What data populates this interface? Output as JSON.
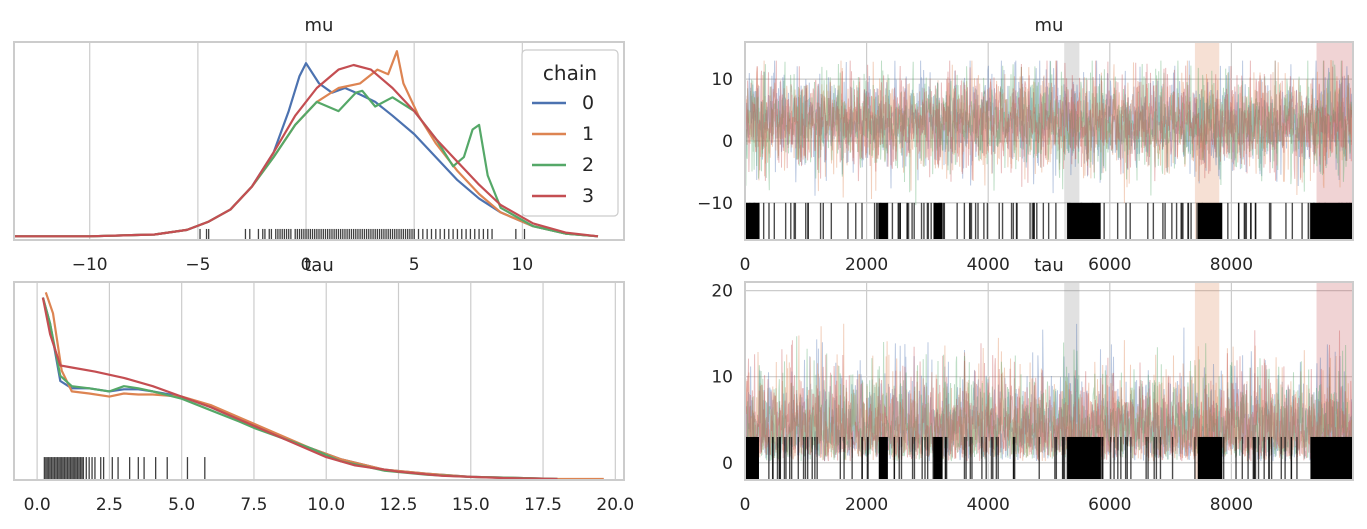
{
  "colors": {
    "chain_0": "#4c72b0",
    "chain_1": "#dd8452",
    "chain_2": "#55a868",
    "chain_3": "#c44e52",
    "rug": "#000000",
    "grid": "#cccccc",
    "frame": "#cccccc"
  },
  "chart_data": [
    {
      "id": "mu-density",
      "type": "line",
      "title": "mu",
      "grid": "vertical",
      "legend": {
        "title": "chain",
        "labels": [
          "0",
          "1",
          "2",
          "3"
        ],
        "placement": "top-right"
      },
      "xlim": [
        -13.5,
        14.7
      ],
      "xticks": [
        -10,
        -5,
        0,
        5,
        10
      ],
      "xtick_labels": [
        "−10",
        "−5",
        "0",
        "5",
        "10"
      ],
      "series": [
        {
          "name": "0",
          "x": [
            -13.5,
            -10,
            -7,
            -5.5,
            -4.5,
            -3.5,
            -2.5,
            -1.5,
            -0.8,
            -0.3,
            0,
            0.6,
            1.2,
            1.8,
            2.5,
            3.2,
            4,
            5,
            6,
            7,
            8,
            9,
            10.5,
            12,
            13.5
          ],
          "y": [
            0.004,
            0.004,
            0.006,
            0.011,
            0.02,
            0.033,
            0.058,
            0.095,
            0.14,
            0.178,
            0.192,
            0.17,
            0.16,
            0.165,
            0.158,
            0.15,
            0.135,
            0.115,
            0.09,
            0.065,
            0.045,
            0.03,
            0.015,
            0.007,
            0.004
          ]
        },
        {
          "name": "1",
          "x": [
            -13.5,
            -10,
            -7,
            -5.5,
            -4.5,
            -3.5,
            -2.5,
            -1.5,
            -0.5,
            0.5,
            1.5,
            2.5,
            3.3,
            3.8,
            4.2,
            4.5,
            5.2,
            6,
            7,
            8,
            9,
            10.5,
            12,
            13.5
          ],
          "y": [
            0.004,
            0.004,
            0.006,
            0.011,
            0.02,
            0.033,
            0.058,
            0.09,
            0.125,
            0.15,
            0.165,
            0.17,
            0.185,
            0.18,
            0.205,
            0.17,
            0.135,
            0.105,
            0.075,
            0.05,
            0.03,
            0.015,
            0.007,
            0.004
          ]
        },
        {
          "name": "2",
          "x": [
            -13.5,
            -10,
            -7,
            -5.5,
            -4.5,
            -3.5,
            -2.5,
            -1.5,
            -0.5,
            0.5,
            1.5,
            2.3,
            2.6,
            3.2,
            4,
            5,
            6,
            6.8,
            7.3,
            7.7,
            8,
            8.4,
            9,
            10.5,
            12,
            13.5
          ],
          "y": [
            0.004,
            0.004,
            0.006,
            0.011,
            0.02,
            0.033,
            0.058,
            0.09,
            0.125,
            0.15,
            0.14,
            0.16,
            0.162,
            0.145,
            0.155,
            0.14,
            0.11,
            0.08,
            0.09,
            0.12,
            0.125,
            0.07,
            0.035,
            0.015,
            0.007,
            0.004
          ]
        },
        {
          "name": "3",
          "x": [
            -13.5,
            -10,
            -7,
            -5.5,
            -4.5,
            -3.5,
            -2.5,
            -1.5,
            -0.5,
            0.5,
            1.5,
            2.2,
            3,
            4,
            5,
            6,
            7,
            8,
            9,
            10.5,
            12,
            13.5
          ],
          "y": [
            0.004,
            0.004,
            0.006,
            0.011,
            0.02,
            0.033,
            0.058,
            0.095,
            0.135,
            0.165,
            0.185,
            0.19,
            0.185,
            0.165,
            0.14,
            0.11,
            0.085,
            0.06,
            0.038,
            0.018,
            0.008,
            0.004
          ]
        }
      ],
      "rug": [
        -4.9,
        -4.6,
        -4.5,
        -2.8,
        -2.6,
        -2.2,
        -2.0,
        -1.9,
        -1.7,
        -1.6,
        -1.4,
        -1.3,
        -1.2,
        -1.1,
        -1.0,
        -0.9,
        -0.8,
        -0.7,
        -0.5,
        -0.4,
        -0.3,
        -0.2,
        -0.1,
        0.0,
        0.1,
        0.2,
        0.3,
        0.4,
        0.5,
        0.6,
        0.7,
        0.8,
        0.9,
        1.0,
        1.1,
        1.2,
        1.3,
        1.4,
        1.5,
        1.6,
        1.7,
        1.8,
        1.9,
        2.0,
        2.1,
        2.2,
        2.3,
        2.4,
        2.5,
        2.6,
        2.7,
        2.8,
        2.9,
        3.0,
        3.1,
        3.2,
        3.3,
        3.4,
        3.5,
        3.6,
        3.7,
        3.8,
        3.9,
        4.0,
        4.1,
        4.2,
        4.3,
        4.4,
        4.5,
        4.6,
        4.7,
        4.8,
        4.9,
        5.0,
        5.2,
        5.4,
        5.6,
        5.8,
        6.0,
        6.2,
        6.4,
        6.6,
        6.8,
        7.0,
        7.2,
        7.4,
        7.6,
        7.8,
        8.0,
        8.2,
        8.4,
        8.6,
        9.7,
        10.1
      ],
      "rug_height": 0.012,
      "ylim": [
        0,
        0.215
      ]
    },
    {
      "id": "mu-trace",
      "type": "line",
      "title": "mu",
      "grid": "both",
      "xlim": [
        0,
        10000
      ],
      "ylim": [
        -16,
        16
      ],
      "xticks": [
        0,
        2000,
        4000,
        6000,
        8000
      ],
      "xtick_labels": [
        "0",
        "2000",
        "4000",
        "6000",
        "8000"
      ],
      "yticks": [
        -10,
        0,
        10
      ],
      "ytick_labels": [
        "−10",
        "0",
        "10"
      ],
      "trace": {
        "mean": 3,
        "sd": 4,
        "clip": [
          -12,
          13
        ],
        "samples": 10000,
        "rug_y": [
          -16,
          -10
        ]
      },
      "divergence_blocks": [
        [
          0,
          230
        ],
        [
          2200,
          2350
        ],
        [
          3100,
          3250
        ],
        [
          5300,
          5850
        ],
        [
          7450,
          7850
        ],
        [
          9300,
          10000
        ]
      ],
      "shaded": [
        [
          5250,
          5500,
          "#888888"
        ],
        [
          7400,
          7800,
          "#dd8452"
        ],
        [
          9400,
          10000,
          "#c44e52"
        ]
      ]
    },
    {
      "id": "tau-density",
      "type": "line",
      "title": "tau",
      "grid": "vertical",
      "xlim": [
        -0.8,
        20.3
      ],
      "xticks": [
        0.0,
        2.5,
        5.0,
        7.5,
        10.0,
        12.5,
        15.0,
        17.5,
        20.0
      ],
      "xtick_labels": [
        "0.0",
        "2.5",
        "5.0",
        "7.5",
        "10.0",
        "12.5",
        "15.0",
        "17.5",
        "20.0"
      ],
      "ylim": [
        0,
        0.19
      ],
      "series": [
        {
          "name": "0",
          "x": [
            0.2,
            0.45,
            0.8,
            1.2,
            1.8,
            2.5,
            3.0,
            3.5,
            4.0,
            5.0,
            6.0,
            7.0,
            7.5,
            8.5,
            9.5,
            10.5,
            12,
            13.5,
            15,
            16.5,
            18
          ],
          "y": [
            0.175,
            0.15,
            0.095,
            0.088,
            0.088,
            0.085,
            0.087,
            0.087,
            0.085,
            0.08,
            0.07,
            0.058,
            0.052,
            0.04,
            0.03,
            0.02,
            0.01,
            0.006,
            0.003,
            0.002,
            0.001
          ]
        },
        {
          "name": "1",
          "x": [
            0.3,
            0.55,
            0.85,
            1.2,
            1.8,
            2.5,
            3.0,
            3.5,
            4.0,
            5.0,
            6.0,
            7.0,
            7.5,
            8.5,
            9.5,
            10.5,
            12,
            13.5,
            15,
            16.5,
            18,
            19.6
          ],
          "y": [
            0.18,
            0.16,
            0.105,
            0.085,
            0.083,
            0.08,
            0.083,
            0.082,
            0.082,
            0.08,
            0.072,
            0.06,
            0.054,
            0.042,
            0.03,
            0.02,
            0.01,
            0.006,
            0.003,
            0.002,
            0.001,
            0.001
          ]
        },
        {
          "name": "2",
          "x": [
            0.2,
            0.45,
            0.8,
            1.2,
            1.8,
            2.5,
            3.0,
            3.5,
            4.0,
            5.0,
            6.0,
            7.0,
            7.5,
            8.5,
            9.5,
            10.5,
            12,
            13.5,
            15,
            16.5,
            18
          ],
          "y": [
            0.175,
            0.15,
            0.1,
            0.09,
            0.088,
            0.085,
            0.09,
            0.088,
            0.085,
            0.078,
            0.067,
            0.056,
            0.05,
            0.04,
            0.03,
            0.018,
            0.009,
            0.005,
            0.003,
            0.002,
            0.001
          ]
        },
        {
          "name": "3",
          "x": [
            0.2,
            0.45,
            0.8,
            1.2,
            2.0,
            3.0,
            4.0,
            5.0,
            6.0,
            7.0,
            8.0,
            9.0,
            10.0,
            11.0,
            12.5,
            14,
            16,
            18
          ],
          "y": [
            0.175,
            0.14,
            0.11,
            0.108,
            0.104,
            0.098,
            0.09,
            0.08,
            0.07,
            0.058,
            0.046,
            0.034,
            0.022,
            0.014,
            0.008,
            0.004,
            0.002,
            0.001
          ]
        }
      ],
      "rug": [
        0.25,
        0.3,
        0.35,
        0.4,
        0.45,
        0.5,
        0.55,
        0.6,
        0.65,
        0.7,
        0.75,
        0.8,
        0.85,
        0.9,
        0.95,
        1.0,
        1.05,
        1.1,
        1.15,
        1.2,
        1.25,
        1.3,
        1.35,
        1.4,
        1.45,
        1.5,
        1.55,
        1.6,
        1.7,
        1.8,
        1.9,
        2.0,
        2.2,
        2.3,
        2.6,
        2.8,
        3.2,
        3.5,
        3.7,
        4.1,
        4.5,
        5.2,
        5.8
      ],
      "rug_height": 0.022
    },
    {
      "id": "tau-trace",
      "type": "line",
      "title": "tau",
      "grid": "both",
      "xlim": [
        0,
        10000
      ],
      "ylim": [
        -2,
        21
      ],
      "xticks": [
        0,
        2000,
        4000,
        6000,
        8000
      ],
      "xtick_labels": [
        "0",
        "2000",
        "4000",
        "6000",
        "8000"
      ],
      "yticks": [
        0,
        10,
        20
      ],
      "ytick_labels": [
        "0",
        "10",
        "20"
      ],
      "trace": {
        "mean": 5,
        "sd": 4,
        "clip": [
          0.2,
          19.5
        ],
        "samples": 10000,
        "rug_y": [
          -2,
          3
        ]
      },
      "divergence_blocks": [
        [
          0,
          230
        ],
        [
          2200,
          2350
        ],
        [
          3100,
          3250
        ],
        [
          5300,
          5850
        ],
        [
          7450,
          7850
        ],
        [
          9300,
          10000
        ]
      ],
      "shaded": [
        [
          5250,
          5500,
          "#888888"
        ],
        [
          7400,
          7800,
          "#dd8452"
        ],
        [
          9400,
          10000,
          "#c44e52"
        ]
      ]
    }
  ]
}
